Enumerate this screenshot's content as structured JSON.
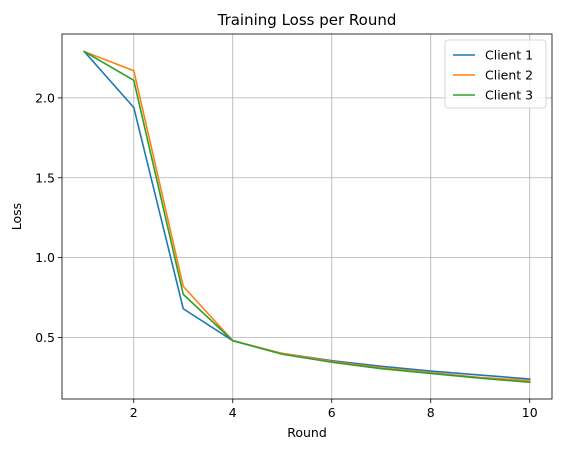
{
  "chart_data": {
    "type": "line",
    "title": "Training Loss per Round",
    "xlabel": "Round",
    "ylabel": "Loss",
    "x": [
      1,
      2,
      3,
      4,
      5,
      6,
      7,
      8,
      9,
      10
    ],
    "xlim": [
      0.55,
      10.45
    ],
    "ylim": [
      0.115,
      2.4
    ],
    "xticks": [
      2,
      4,
      6,
      8,
      10
    ],
    "yticks": [
      0.5,
      1.0,
      1.5,
      2.0
    ],
    "ytick_labels": [
      "0.5",
      "1.0",
      "1.5",
      "2.0"
    ],
    "grid": true,
    "legend_position": "top-right",
    "series": [
      {
        "name": "Client 1",
        "color": "#1f77b4",
        "values": [
          2.29,
          1.94,
          0.68,
          0.48,
          0.4,
          0.355,
          0.32,
          0.29,
          0.265,
          0.24
        ]
      },
      {
        "name": "Client 2",
        "color": "#ff7f0e",
        "values": [
          2.29,
          2.17,
          0.82,
          0.48,
          0.4,
          0.35,
          0.31,
          0.28,
          0.25,
          0.23
        ]
      },
      {
        "name": "Client 3",
        "color": "#2ca02c",
        "values": [
          2.29,
          2.11,
          0.77,
          0.48,
          0.395,
          0.345,
          0.305,
          0.275,
          0.245,
          0.22
        ]
      }
    ]
  }
}
